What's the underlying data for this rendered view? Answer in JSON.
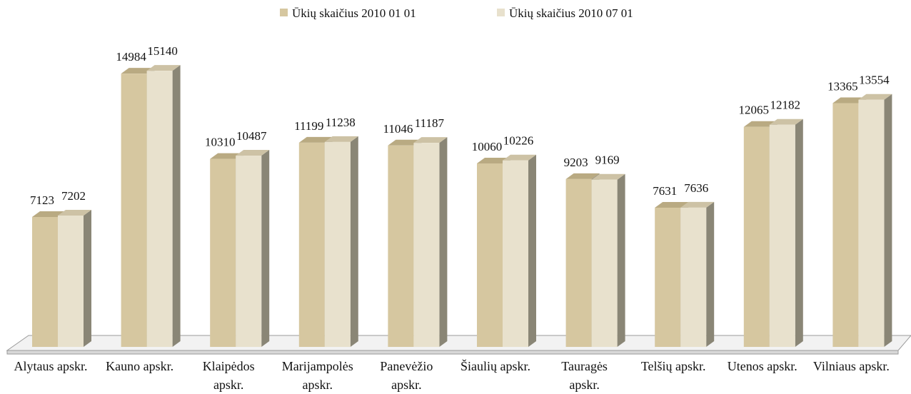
{
  "chart_data": {
    "type": "bar3d",
    "categories": [
      "Alytaus apskr.",
      "Kauno apskr.",
      "Klaipėdos apskr.",
      "Marijampolės apskr.",
      "Panevėžio apskr.",
      "Šiaulių apskr.",
      "Tauragės apskr.",
      "Telšių apskr.",
      "Utenos apskr.",
      "Vilniaus apskr."
    ],
    "series": [
      {
        "name": "Ūkių skaičius 2010 01 01",
        "color": "#d6c7a0",
        "values": [
          7123,
          14984,
          10310,
          11199,
          11046,
          10060,
          9203,
          7631,
          12065,
          13365
        ]
      },
      {
        "name": "Ūkių skaičius 2010 07 01",
        "color": "#e8e1cd",
        "values": [
          7202,
          15140,
          10487,
          11238,
          11187,
          10226,
          9169,
          7636,
          12182,
          13554
        ]
      }
    ],
    "legend": "top"
  }
}
